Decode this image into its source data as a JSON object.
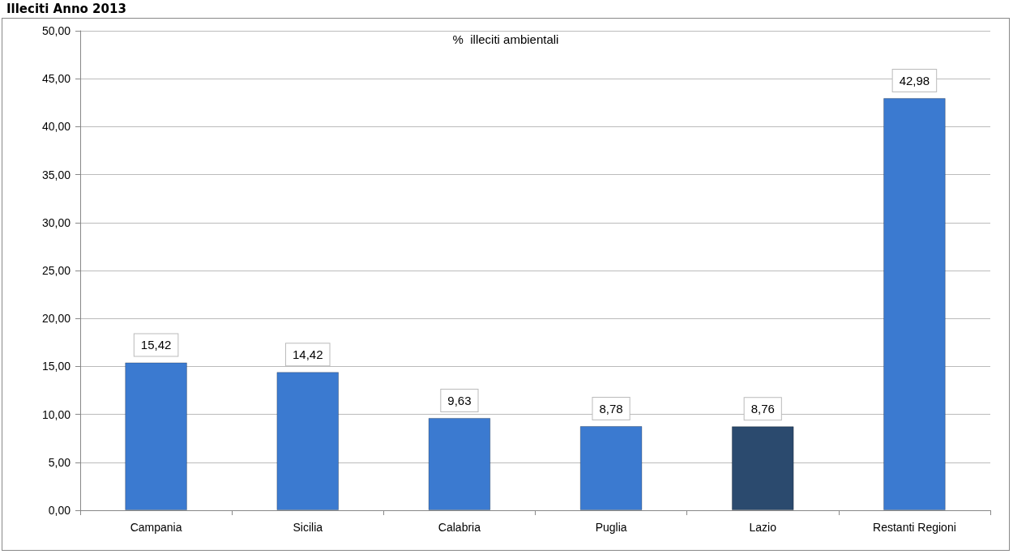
{
  "chart_data": {
    "type": "bar",
    "title": "Illeciti Anno 2013",
    "subtitle": "%  illeciti ambientali",
    "categories": [
      "Campania",
      "Sicilia",
      "Calabria",
      "Puglia",
      "Lazio",
      "Restanti Regioni"
    ],
    "values": [
      15.42,
      14.42,
      9.63,
      8.78,
      8.76,
      42.98
    ],
    "colors": [
      "#3b7ad0",
      "#3b7ad0",
      "#3b7ad0",
      "#3b7ad0",
      "#2b4a6e",
      "#3b7ad0"
    ],
    "value_labels": [
      "15,42",
      "14,42",
      "9,63",
      "8,78",
      "8,76",
      "42,98"
    ],
    "ylim": [
      0,
      50
    ],
    "yticks": [
      {
        "value": 0,
        "label": "0,00"
      },
      {
        "value": 5,
        "label": "5,00"
      },
      {
        "value": 10,
        "label": "10,00"
      },
      {
        "value": 15,
        "label": "15,00"
      },
      {
        "value": 20,
        "label": "20,00"
      },
      {
        "value": 25,
        "label": "25,00"
      },
      {
        "value": 30,
        "label": "30,00"
      },
      {
        "value": 35,
        "label": "35,00"
      },
      {
        "value": 40,
        "label": "40,00"
      },
      {
        "value": 45,
        "label": "45,00"
      },
      {
        "value": 50,
        "label": "50,00"
      }
    ],
    "grid": "y"
  }
}
